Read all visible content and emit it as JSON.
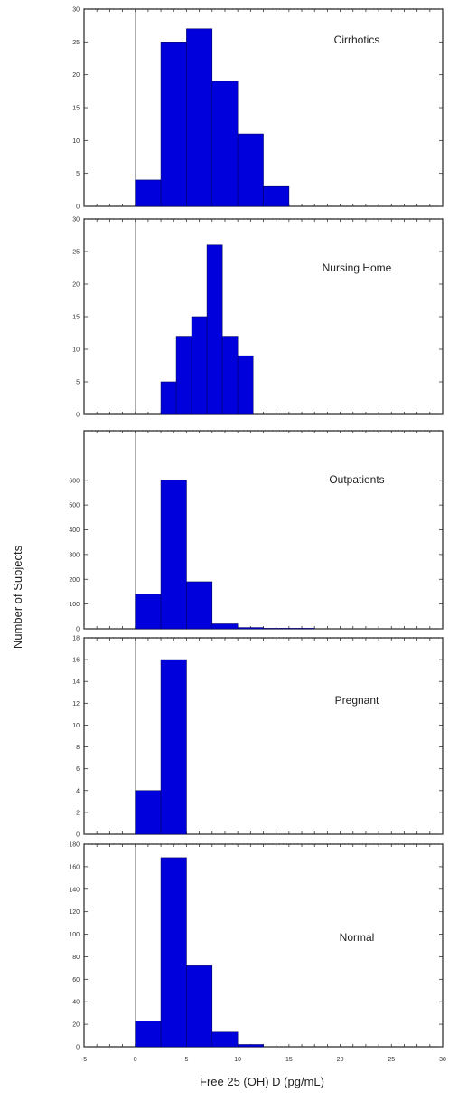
{
  "chart_data": {
    "type": "bar",
    "title": "",
    "xlabel": "Free 25 (OH) D (pg/mL)",
    "ylabel": "Number of Subjects",
    "xlim": [
      -5,
      30
    ],
    "x_ticks": [
      "-5",
      "0",
      "5",
      "10",
      "15",
      "20",
      "25",
      "30"
    ],
    "bar_color": "#0000dd",
    "bin_width": 2.5,
    "bin_starts": [
      0,
      2.5,
      5,
      7.5,
      10,
      12.5,
      15,
      17.5
    ],
    "panels": [
      {
        "name": "Cirrhotics",
        "ylim": [
          0,
          30
        ],
        "y_ticks": [
          "0",
          "5",
          "10",
          "15",
          "20",
          "25",
          "30"
        ],
        "values": [
          4,
          25,
          27,
          19,
          11,
          3,
          0,
          0
        ]
      },
      {
        "name": "Nursing Home",
        "ylim": [
          0,
          30
        ],
        "y_ticks": [
          "0",
          "5",
          "10",
          "15",
          "20",
          "25",
          "30"
        ],
        "bins": [
          [
            2.5,
            4
          ],
          [
            4,
            5.5
          ],
          [
            5.5,
            7
          ],
          [
            7,
            8.5
          ],
          [
            8.5,
            10
          ],
          [
            10,
            11.5
          ]
        ],
        "values": [
          5,
          12,
          15,
          26,
          12,
          9
        ]
      },
      {
        "name": "Outpatients",
        "ylim": [
          0,
          800
        ],
        "y_ticks": [
          "0",
          "100",
          "200",
          "300",
          "400",
          "500",
          "600"
        ],
        "values": [
          140,
          600,
          190,
          20,
          5,
          2,
          2,
          0
        ]
      },
      {
        "name": "Pregnant",
        "ylim": [
          0,
          18
        ],
        "y_ticks": [
          "0",
          "2",
          "4",
          "6",
          "8",
          "10",
          "12",
          "14",
          "16",
          "18"
        ],
        "values": [
          4,
          16,
          0,
          0,
          0,
          0,
          0,
          0
        ]
      },
      {
        "name": "Normal",
        "ylim": [
          0,
          180
        ],
        "y_ticks": [
          "0",
          "20",
          "40",
          "60",
          "80",
          "100",
          "120",
          "140",
          "160",
          "180"
        ],
        "values": [
          23,
          168,
          72,
          13,
          2,
          0,
          0,
          0
        ]
      }
    ]
  }
}
